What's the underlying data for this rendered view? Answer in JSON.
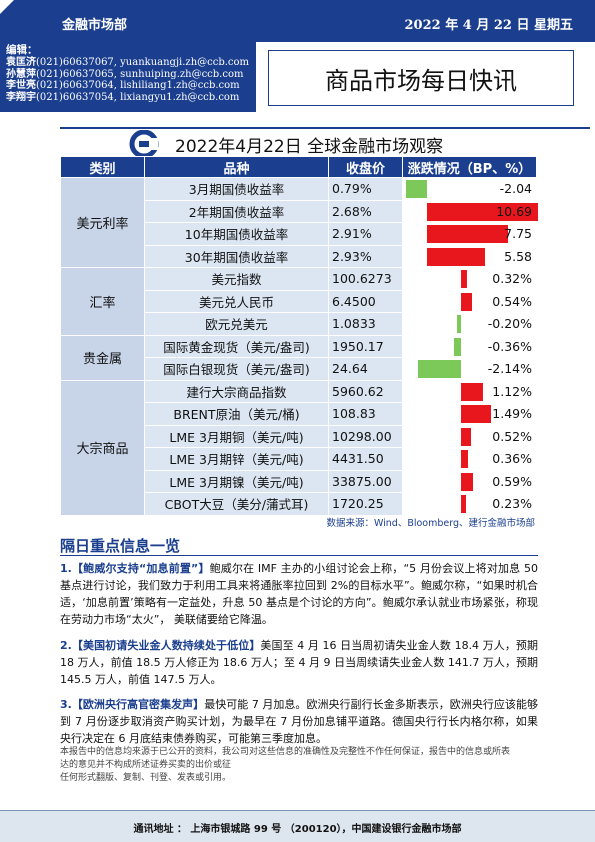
{
  "header": {
    "dept": "金融市场部",
    "date": "2022 年 4 月 22 日  星期五"
  },
  "editors": {
    "label": "编辑：",
    "rows": [
      {
        "name": "袁匡济",
        "phone": "(021)60637067,",
        "email": "yuankuangji.zh@ccb.com"
      },
      {
        "name": "孙慧萍",
        "phone": "(021)60637065,",
        "email": "sunhuiping.zh@ccb.com"
      },
      {
        "name": "李世亮",
        "phone": "(021)60637064,",
        "email": "lishiliang1.zh@ccb.com"
      },
      {
        "name": "李翔宇",
        "phone": "(021)60637054,",
        "email": "lixiangyu1.zh@ccb.com"
      }
    ]
  },
  "title": "商品市场每日快讯",
  "subtitle": "2022年4月22日 全球金融市场观察",
  "logo_icon": "ccb-logo-icon",
  "colors": {
    "brand": "#1b3f8e",
    "up": "#e8161d",
    "down": "#7cc95a"
  },
  "table": {
    "headers": [
      "类别",
      "品种",
      "收盘价",
      "涨跌情况（BP、%）"
    ],
    "groups": [
      {
        "category": "美元利率",
        "rows": [
          {
            "item": "3月期国债收益率",
            "value": "0.79%",
            "change": -2.04,
            "change_text": "-2.04"
          },
          {
            "item": "2年期国债收益率",
            "value": "2.68%",
            "change": 10.69,
            "change_text": "10.69"
          },
          {
            "item": "10年期国债收益率",
            "value": "2.91%",
            "change": 7.75,
            "change_text": "7.75"
          },
          {
            "item": "30年期国债收益率",
            "value": "2.93%",
            "change": 5.58,
            "change_text": "5.58"
          }
        ]
      },
      {
        "category": "汇率",
        "rows": [
          {
            "item": "美元指数",
            "value": "100.6273",
            "change": 0.32,
            "change_text": "0.32%"
          },
          {
            "item": "美元兑人民币",
            "value": "6.4500",
            "change": 0.54,
            "change_text": "0.54%"
          },
          {
            "item": "欧元兑美元",
            "value": "1.0833",
            "change": -0.2,
            "change_text": "-0.20%"
          }
        ]
      },
      {
        "category": "贵金属",
        "rows": [
          {
            "item": "国际黄金现货（美元/盎司)",
            "value": "1950.17",
            "change": -0.36,
            "change_text": "-0.36%"
          },
          {
            "item": "国际白银现货（美元/盎司)",
            "value": "24.64",
            "change": -2.14,
            "change_text": "-2.14%"
          }
        ]
      },
      {
        "category": "大宗商品",
        "rows": [
          {
            "item": "建行大宗商品指数",
            "value": "5960.62",
            "change": 1.12,
            "change_text": "1.12%"
          },
          {
            "item": "BRENT原油（美元/桶)",
            "value": "108.83",
            "change": 1.49,
            "change_text": "1.49%"
          },
          {
            "item": "LME 3月期铜（美元/吨)",
            "value": "10298.00",
            "change": 0.52,
            "change_text": "0.52%"
          },
          {
            "item": "LME 3月期锌（美元/吨)",
            "value": "4431.50",
            "change": 0.36,
            "change_text": "0.36%"
          },
          {
            "item": "LME 3月期镍（美元/吨)",
            "value": "33875.00",
            "change": 0.59,
            "change_text": "0.59%"
          },
          {
            "item": "CBOT大豆（美分/蒲式耳)",
            "value": "1720.25",
            "change": 0.23,
            "change_text": "0.23%"
          }
        ]
      }
    ]
  },
  "source": "数据来源：Wind、Bloomberg、建行金融市场部",
  "section": {
    "title": "隔日重点信息一览",
    "items": [
      {
        "head": "1.【鲍威尔支持“加息前置”】",
        "body": "鲍威尔在 IMF 主办的小组讨论会上称，“5 月份会议上将对加息 50 基点进行讨论，我们致力于利用工具来将通胀率拉回到 2%的目标水平”。鲍威尔称，“如果时机合适，‘加息前置’策略有一定益处，升息 50 基点是个讨论的方向”。鲍威尔承认就业市场紧张，称现在劳动力市场“太火”， 美联储要给它降温。"
      },
      {
        "head": "2.【美国初请失业金人数持续处于低位】",
        "body": "美国至 4 月 16 日当周初请失业金人数 18.4 万人，预期 18 万人，前值 18.5 万人修正为 18.6 万人；至 4 月 9 日当周续请失业金人数 141.7 万人，预期 145.5 万人，前值 147.5 万人。"
      },
      {
        "head": "3.【欧洲央行高官密集发声】",
        "body": "最快可能 7 月加息。欧洲央行副行长金多斯表示，欧洲央行应该能够到 7 月份逐步取消资产购买计划，为最早在 7 月份加息铺平道路。德国央行行长内格尔称，如果央行决定在 6 月底结束债券购买，可能第三季度加息。"
      }
    ]
  },
  "disclaimer": [
    "本报告中的信息均来源于已公开的资料，我公司对这些信息的准确性及完整性不作任何保证，报告中的信息或所表",
    "达的意见并不构成所述证券买卖的出价或征",
    "任何形式翻版、复制、刊登、发表或引用。"
  ],
  "footer": "通讯地址 ：  上海市银城路 99 号 （200120），中国建设银行金融市场部"
}
